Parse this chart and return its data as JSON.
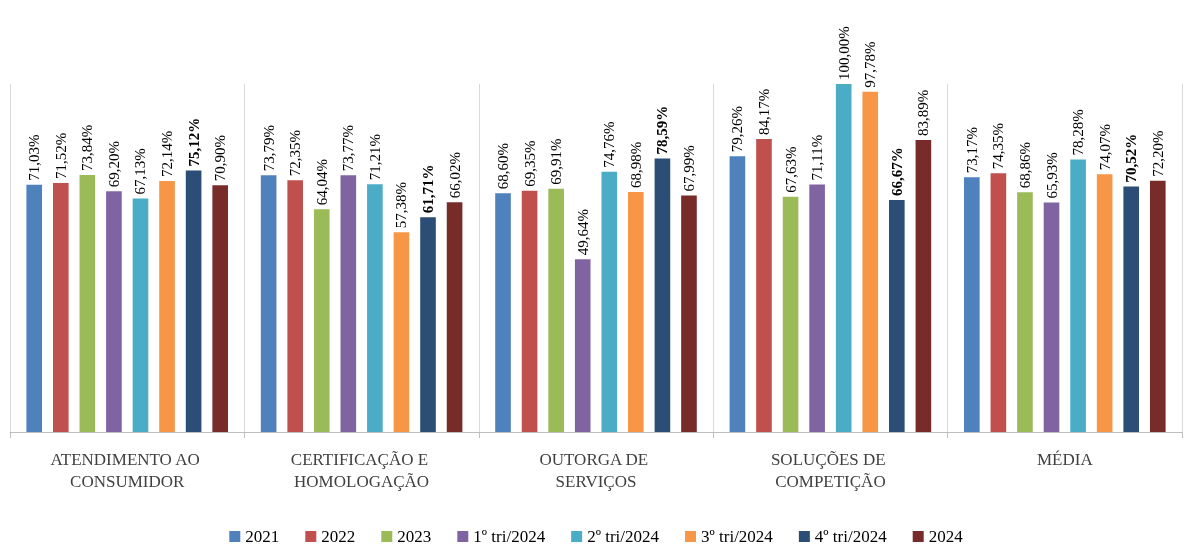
{
  "chart_data": {
    "type": "bar",
    "categories": [
      "ATENDIMENTO AO CONSUMIDOR",
      "CERTIFICAÇÃO E HOMOLOGAÇÃO",
      "OUTORGA DE SERVIÇOS",
      "SOLUÇÕES DE COMPETIÇÃO",
      "MÉDIA"
    ],
    "series": [
      {
        "name": "2021",
        "color": "#4f81bd",
        "values": [
          71.03,
          73.79,
          68.6,
          79.26,
          73.17
        ],
        "value_labels": [
          "71,03%",
          "73,79%",
          "68,60%",
          "79,26%",
          "73,17%"
        ]
      },
      {
        "name": "2022",
        "color": "#c0504d",
        "values": [
          71.52,
          72.35,
          69.35,
          84.17,
          74.35
        ],
        "value_labels": [
          "71,52%",
          "72,35%",
          "69,35%",
          "84,17%",
          "74,35%"
        ]
      },
      {
        "name": "2023",
        "color": "#9bbb59",
        "values": [
          73.84,
          64.04,
          69.91,
          67.63,
          68.86
        ],
        "value_labels": [
          "73,84%",
          "64,04%",
          "69,91%",
          "67,63%",
          "68,86%"
        ]
      },
      {
        "name": "1º tri/2024",
        "color": "#8064a2",
        "values": [
          69.2,
          73.77,
          49.64,
          71.11,
          65.93
        ],
        "value_labels": [
          "69,20%",
          "73,77%",
          "49,64%",
          "71,11%",
          "65,93%"
        ]
      },
      {
        "name": "2º tri/2024",
        "color": "#4bacc6",
        "values": [
          67.13,
          71.21,
          74.76,
          100.0,
          78.28
        ],
        "value_labels": [
          "67,13%",
          "71,21%",
          "74,76%",
          "100,00%",
          "78,28%"
        ]
      },
      {
        "name": "3º tri/2024",
        "color": "#f79646",
        "values": [
          72.14,
          57.38,
          68.98,
          97.78,
          74.07
        ],
        "value_labels": [
          "72,14%",
          "57,38%",
          "68,98%",
          "97,78%",
          "74,07%"
        ]
      },
      {
        "name": "4º tri/2024",
        "color": "#2c4d75",
        "values": [
          75.12,
          61.71,
          78.59,
          66.67,
          70.52
        ],
        "value_labels": [
          "75,12%",
          "61,71%",
          "78,59%",
          "66,67%",
          "70,52%"
        ]
      },
      {
        "name": "2024",
        "color": "#772c2a",
        "values": [
          70.9,
          66.02,
          67.99,
          83.89,
          72.2
        ],
        "value_labels": [
          "70,90%",
          "66,02%",
          "67,99%",
          "83,89%",
          "72,20%"
        ]
      }
    ],
    "grid": "x",
    "legend": "bottom"
  }
}
